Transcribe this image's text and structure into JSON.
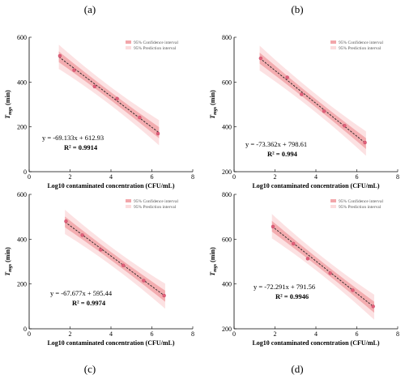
{
  "chart_data": [
    {
      "type": "scatter",
      "panel_label": "(a)",
      "xlabel": "Log10 contaminated concentration (CFU/mL)",
      "ylabel_main": "T",
      "ylabel_sub": "mgs",
      "ylabel_unit": " (min)",
      "xlim": [
        0,
        8
      ],
      "ylim": [
        0,
        600
      ],
      "xticks": [
        0,
        2,
        4,
        6,
        8
      ],
      "yticks": [
        0,
        200,
        400,
        600
      ],
      "x": [
        1.5,
        2.2,
        3.2,
        4.3,
        5.4,
        6.3
      ],
      "y": [
        517,
        453,
        380,
        326,
        242,
        170
      ],
      "slope": -69.133,
      "intercept": 612.93,
      "equation": "y = -69.133x + 612.93",
      "r2": "R² = 0.9914",
      "legend": [
        "95% Confidence interval",
        "95% Prediction interval"
      ],
      "legend_position": "top-right",
      "colors": {
        "points": "#e0607a",
        "line": "#222222",
        "ci": "#f2a6aa",
        "pi": "#fbdcdd"
      }
    },
    {
      "type": "scatter",
      "panel_label": "(b)",
      "xlabel": "Log10 contaminated concentration (CFU/mL)",
      "ylabel_main": "T",
      "ylabel_sub": "mgs",
      "ylabel_unit": " (min)",
      "xlim": [
        0,
        8
      ],
      "ylim": [
        200,
        800
      ],
      "xticks": [
        0,
        2,
        4,
        6,
        8
      ],
      "yticks": [
        200,
        400,
        600,
        800
      ],
      "x": [
        1.3,
        2.6,
        3.3,
        4.4,
        5.4,
        6.4
      ],
      "y": [
        706,
        621,
        545,
        470,
        405,
        330
      ],
      "slope": -73.362,
      "intercept": 798.61,
      "equation": "y = -73.362x + 798.61",
      "r2": "R² = 0.994",
      "legend": [
        "95% Confidence interval",
        "95% Prediction interval"
      ],
      "legend_position": "top-right",
      "colors": {
        "points": "#e0607a",
        "line": "#222222",
        "ci": "#f2a6aa",
        "pi": "#fbdcdd"
      }
    },
    {
      "type": "scatter",
      "panel_label": "(c)",
      "xlabel": "Log10 contaminated concentration (CFU/mL)",
      "ylabel_main": "T",
      "ylabel_sub": "mgs",
      "ylabel_unit": " (min)",
      "xlim": [
        0,
        8
      ],
      "ylim": [
        0,
        600
      ],
      "xticks": [
        0,
        2,
        4,
        6,
        8
      ],
      "yticks": [
        0,
        200,
        400,
        600
      ],
      "x": [
        1.8,
        2.6,
        3.5,
        4.6,
        5.6,
        6.6
      ],
      "y": [
        480,
        418,
        353,
        283,
        215,
        148
      ],
      "slope": -67.677,
      "intercept": 595.44,
      "equation": "y = -67.677x + 595.44",
      "r2": "R² = 0.9974",
      "legend": [
        "95% Confidence interval",
        "95% Prediction interval"
      ],
      "legend_position": "top-right",
      "colors": {
        "points": "#e0607a",
        "line": "#222222",
        "ci": "#f2a6aa",
        "pi": "#fbdcdd"
      }
    },
    {
      "type": "scatter",
      "panel_label": "(d)",
      "xlabel": "Log10 contaminated concentration (CFU/mL)",
      "ylabel_main": "T",
      "ylabel_sub": "mgs",
      "ylabel_unit": " (min)",
      "xlim": [
        0,
        8
      ],
      "ylim": [
        200,
        800
      ],
      "xticks": [
        0,
        2,
        4,
        6,
        8
      ],
      "yticks": [
        200,
        400,
        600,
        800
      ],
      "x": [
        1.9,
        2.9,
        3.6,
        4.7,
        5.8,
        6.8
      ],
      "y": [
        656,
        580,
        513,
        448,
        372,
        300
      ],
      "slope": -72.291,
      "intercept": 791.56,
      "equation": "y = -72.291x + 791.56",
      "r2": "R² = 0.9946",
      "legend": [
        "95% Confidence interval",
        "95% Prediction interval"
      ],
      "legend_position": "top-right",
      "colors": {
        "points": "#e0607a",
        "line": "#222222",
        "ci": "#f2a6aa",
        "pi": "#fbdcdd"
      }
    }
  ]
}
